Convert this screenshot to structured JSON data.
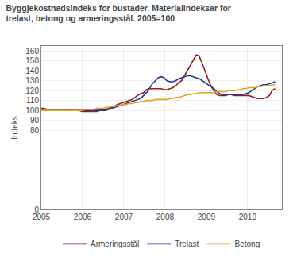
{
  "chart_data": {
    "type": "line",
    "title": "Byggjekostnadsindeks for bustader. Materialindeksar for\ntrelast, betong og armeringsstål. 2005=100",
    "ylabel": "Indeks",
    "x": [
      2005,
      2005.0708375,
      2005.141675,
      2005.2125125,
      2005.28335,
      2005.3541875,
      2005.425025,
      2005.4958625,
      2005.5667,
      2005.6375375,
      2005.708375,
      2005.7792125,
      2005.85005,
      2005.9208875,
      2005.991725,
      2006.0625625,
      2006.1334,
      2006.2042375,
      2006.275075,
      2006.3459125,
      2006.41675,
      2006.4875875,
      2006.558425,
      2006.6292625,
      2006.7001,
      2006.7709375,
      2006.841775,
      2006.9126125,
      2006.98345,
      2007.0542875,
      2007.125125,
      2007.1959625,
      2007.2668,
      2007.3376375,
      2007.408475,
      2007.4793125,
      2007.55015,
      2007.6209875,
      2007.691825,
      2007.7626625,
      2007.8335,
      2007.9043375,
      2007.975175,
      2008.0460125,
      2008.11685,
      2008.1876875,
      2008.258525,
      2008.3293625,
      2008.4002,
      2008.4710375,
      2008.541875,
      2008.6127125,
      2008.68355,
      2008.7543875,
      2008.825225,
      2008.8960625,
      2008.9669,
      2009.0377375,
      2009.108575,
      2009.1794125,
      2009.25025,
      2009.3210875,
      2009.391925,
      2009.4627625,
      2009.5336,
      2009.6044375,
      2009.675275,
      2009.7461125,
      2009.81695,
      2009.8877875,
      2009.958625,
      2010.0294625,
      2010.1003,
      2010.1711375,
      2010.241975,
      2010.3128125,
      2010.38365,
      2010.4544875,
      2010.525325,
      2010.5961625,
      2010.667
    ],
    "series": [
      {
        "name": "Armeringsstål",
        "color": "#9B1B1B",
        "values": [
          102,
          102,
          101,
          101,
          101,
          101,
          100,
          100,
          100,
          100,
          100,
          100,
          100,
          100,
          99,
          99,
          99,
          99,
          99,
          99,
          100,
          100,
          101,
          102,
          103,
          104,
          106,
          107,
          108,
          109,
          110,
          111,
          113,
          115,
          117,
          118,
          121,
          122,
          122,
          122,
          122,
          122,
          121,
          121,
          122,
          123,
          125,
          128,
          130,
          135,
          140,
          145,
          150,
          156,
          155,
          148,
          140,
          132,
          125,
          120,
          116,
          115,
          115,
          115,
          116,
          116,
          115,
          115,
          115,
          115,
          115,
          115,
          114,
          113,
          112,
          112,
          112,
          113,
          115,
          120,
          122
        ]
      },
      {
        "name": "Trelast",
        "color": "#1A3A8C",
        "values": [
          101,
          101,
          100,
          100,
          100,
          100,
          100,
          100,
          100,
          100,
          100,
          100,
          100,
          100,
          100,
          100,
          100,
          100,
          100,
          100,
          100,
          100,
          100,
          101,
          102,
          103,
          104,
          105,
          106,
          107,
          108,
          109,
          110,
          111,
          112,
          115,
          118,
          122,
          127,
          130,
          133,
          134,
          133,
          130,
          129,
          129,
          130,
          132,
          133,
          134,
          135,
          135,
          134,
          133,
          132,
          130,
          128,
          126,
          124,
          122,
          119,
          117,
          116,
          116,
          116,
          116,
          116,
          116,
          116,
          116,
          117,
          118,
          120,
          122,
          124,
          125,
          126,
          126,
          127,
          128,
          129
        ]
      },
      {
        "name": "Betong",
        "color": "#E8A020",
        "values": [
          100,
          100,
          100,
          100,
          100,
          100,
          100,
          100,
          100,
          100,
          100,
          100,
          100,
          100,
          100,
          101,
          101,
          101,
          101,
          102,
          102,
          102,
          103,
          103,
          104,
          104,
          105,
          105,
          106,
          106,
          107,
          107,
          108,
          108,
          109,
          109,
          110,
          110,
          110,
          111,
          111,
          111,
          111,
          111,
          112,
          112,
          113,
          113,
          114,
          115,
          116,
          116,
          117,
          117,
          118,
          118,
          118,
          118,
          118,
          118,
          119,
          119,
          119,
          119,
          120,
          120,
          120,
          121,
          121,
          122,
          122,
          123,
          123,
          123,
          124,
          124,
          125,
          125,
          125,
          126,
          126
        ]
      }
    ],
    "xlim": [
      2005.0,
      2010.83
    ],
    "ylim": [
      0,
      165
    ],
    "xticks": [
      2005,
      2006,
      2007,
      2008,
      2009,
      2010
    ],
    "yticks": [
      0,
      80,
      90,
      100,
      110,
      120,
      130,
      140,
      150,
      160
    ],
    "grid": true,
    "legend": "bottom"
  }
}
